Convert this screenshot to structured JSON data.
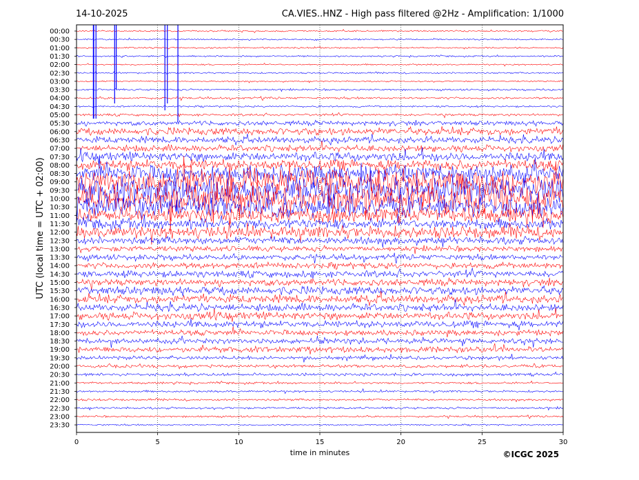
{
  "chart_data": {
    "type": "line",
    "date": "14-10-2025",
    "title": "CA.VIES..HNZ - High pass filtered @2Hz - Amplification: 1/1000",
    "xlabel": "time in minutes",
    "ylabel": "UTC (local time = UTC + 02:00)",
    "copyright": "©ICGC 2025",
    "xlim": [
      0,
      30
    ],
    "x_ticks": [
      "0",
      "5",
      "10",
      "15",
      "20",
      "25",
      "30"
    ],
    "x_tick_values": [
      0,
      5,
      10,
      15,
      20,
      25,
      30
    ],
    "vertical_grid_minutes": [
      5,
      10,
      15,
      20,
      25
    ],
    "grid": true,
    "trace_colors": [
      "#ff0000",
      "#0000ff"
    ],
    "rows": [
      {
        "label": "00:00",
        "amp": 0.05
      },
      {
        "label": "00:30",
        "amp": 0.05
      },
      {
        "label": "01:00",
        "amp": 0.05
      },
      {
        "label": "01:30",
        "amp": 0.05
      },
      {
        "label": "02:00",
        "amp": 0.05
      },
      {
        "label": "02:30",
        "amp": 0.05
      },
      {
        "label": "03:00",
        "amp": 0.05
      },
      {
        "label": "03:30",
        "amp": 0.06
      },
      {
        "label": "04:00",
        "amp": 0.07
      },
      {
        "label": "04:30",
        "amp": 0.06
      },
      {
        "label": "05:00",
        "amp": 0.08
      },
      {
        "label": "05:30",
        "amp": 0.15
      },
      {
        "label": "06:00",
        "amp": 0.25
      },
      {
        "label": "06:30",
        "amp": 0.22
      },
      {
        "label": "07:00",
        "amp": 0.22
      },
      {
        "label": "07:30",
        "amp": 0.3
      },
      {
        "label": "08:00",
        "amp": 0.35
      },
      {
        "label": "08:30",
        "amp": 0.55
      },
      {
        "label": "09:00",
        "amp": 0.9
      },
      {
        "label": "09:30",
        "amp": 0.9
      },
      {
        "label": "10:00",
        "amp": 0.95
      },
      {
        "label": "10:30",
        "amp": 0.7
      },
      {
        "label": "11:00",
        "amp": 0.5
      },
      {
        "label": "11:30",
        "amp": 0.35
      },
      {
        "label": "12:00",
        "amp": 0.4
      },
      {
        "label": "12:30",
        "amp": 0.25
      },
      {
        "label": "13:00",
        "amp": 0.18
      },
      {
        "label": "13:30",
        "amp": 0.18
      },
      {
        "label": "14:00",
        "amp": 0.2
      },
      {
        "label": "14:30",
        "amp": 0.22
      },
      {
        "label": "15:00",
        "amp": 0.22
      },
      {
        "label": "15:30",
        "amp": 0.28
      },
      {
        "label": "16:00",
        "amp": 0.28
      },
      {
        "label": "16:30",
        "amp": 0.25
      },
      {
        "label": "17:00",
        "amp": 0.25
      },
      {
        "label": "17:30",
        "amp": 0.22
      },
      {
        "label": "18:00",
        "amp": 0.18
      },
      {
        "label": "18:30",
        "amp": 0.18
      },
      {
        "label": "19:00",
        "amp": 0.2
      },
      {
        "label": "19:30",
        "amp": 0.12
      },
      {
        "label": "20:00",
        "amp": 0.1
      },
      {
        "label": "20:30",
        "amp": 0.1
      },
      {
        "label": "21:00",
        "amp": 0.07
      },
      {
        "label": "21:30",
        "amp": 0.07
      },
      {
        "label": "22:00",
        "amp": 0.07
      },
      {
        "label": "22:30",
        "amp": 0.07
      },
      {
        "label": "23:00",
        "amp": 0.06
      },
      {
        "label": "23:30",
        "amp": 0.05
      }
    ]
  }
}
